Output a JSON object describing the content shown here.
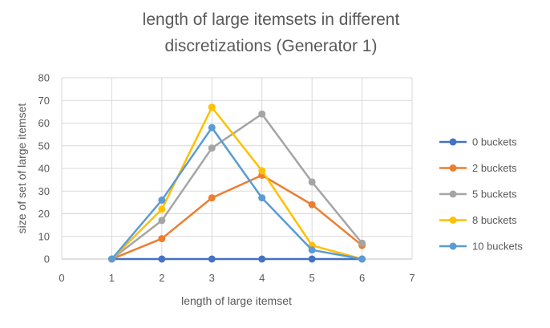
{
  "chart_data": {
    "type": "line",
    "title_lines": [
      "length of large itemsets in different",
      "discretizations (Generator 1)"
    ],
    "xlabel": "length of large itemset",
    "ylabel": "size of set of large itemset",
    "xlim": [
      0,
      7
    ],
    "ylim": [
      0,
      80
    ],
    "x_ticks": [
      "0",
      "1",
      "2",
      "3",
      "4",
      "5",
      "6",
      "7"
    ],
    "y_ticks": [
      "0",
      "10",
      "20",
      "30",
      "40",
      "50",
      "60",
      "70",
      "80"
    ],
    "grid": true,
    "legend_position": "right",
    "x": [
      1,
      2,
      3,
      4,
      5,
      6
    ],
    "series": [
      {
        "name": "0 buckets",
        "color": "#4472C4",
        "values": [
          0,
          0,
          0,
          0,
          0,
          0
        ]
      },
      {
        "name": "2 buckets",
        "color": "#ED7D31",
        "values": [
          0,
          9,
          27,
          37,
          24,
          6
        ]
      },
      {
        "name": "5 buckets",
        "color": "#A5A5A5",
        "values": [
          0,
          17,
          49,
          64,
          34,
          7
        ]
      },
      {
        "name": "8 buckets",
        "color": "#FFC000",
        "values": [
          0,
          22,
          67,
          39,
          6,
          0
        ]
      },
      {
        "name": "10 buckets",
        "color": "#5B9BD5",
        "values": [
          0,
          26,
          58,
          27,
          4,
          0
        ]
      }
    ]
  }
}
